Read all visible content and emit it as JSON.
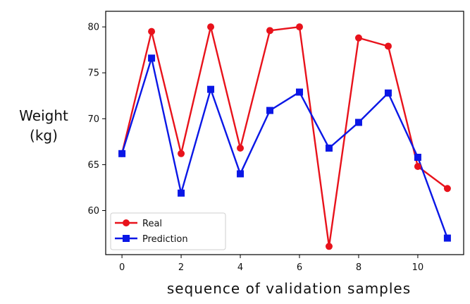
{
  "chart_data": {
    "type": "line",
    "xlabel": "sequence of validation samples",
    "ylabel_line1": "Weight",
    "ylabel_line2": "(kg)",
    "x": [
      0,
      1,
      2,
      3,
      4,
      5,
      6,
      7,
      8,
      9,
      10,
      11
    ],
    "xlim": [
      -0.55,
      11.55
    ],
    "ylim": [
      55.2,
      81.7
    ],
    "xticks": [
      0,
      2,
      4,
      6,
      8,
      10
    ],
    "yticks": [
      60,
      65,
      70,
      75,
      80
    ],
    "grid": false,
    "legend_position": "lower-left",
    "series": [
      {
        "name": "Real",
        "color": "#e8121b",
        "marker": "circle",
        "values": [
          66.2,
          79.5,
          66.2,
          80.0,
          66.8,
          79.6,
          80.0,
          56.1,
          78.8,
          77.9,
          64.8,
          62.4
        ]
      },
      {
        "name": "Prediction",
        "color": "#0a17e6",
        "marker": "square",
        "values": [
          66.2,
          76.6,
          61.9,
          73.2,
          64.0,
          70.9,
          72.9,
          66.8,
          69.6,
          72.8,
          65.8,
          57.0
        ]
      }
    ]
  }
}
